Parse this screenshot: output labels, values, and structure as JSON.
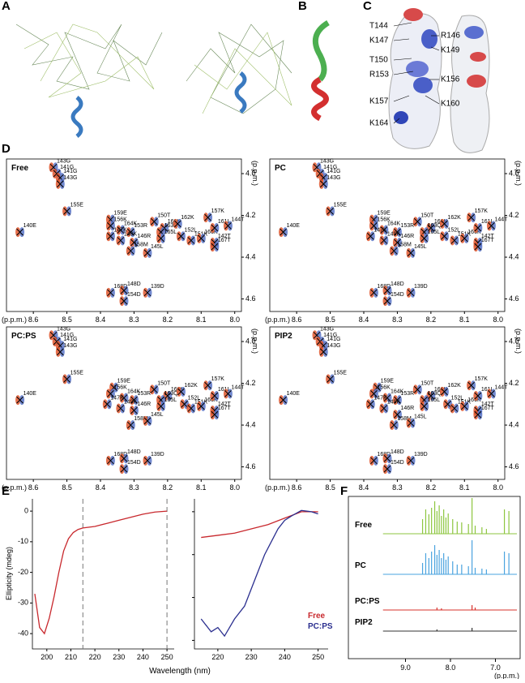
{
  "panel_labels": [
    "A",
    "B",
    "C",
    "D",
    "E",
    "F"
  ],
  "panel_c": {
    "labels": [
      "T144",
      "K147",
      "T150",
      "R153",
      "K157",
      "K164",
      "R146",
      "K149",
      "K156",
      "K160"
    ]
  },
  "panel_d": {
    "xlim": [
      8.68,
      7.98
    ],
    "ylim": [
      3.93,
      4.66
    ],
    "xticks": [
      8.6,
      8.5,
      8.4,
      8.3,
      8.2,
      8.1,
      {
        "value": 8.0,
        "label": "8.0"
      }
    ],
    "yticks": [
      {
        "value": 4.0,
        "label": "4.0"
      },
      4.2,
      4.4,
      4.6
    ],
    "xlabel": "(p.p.m.)",
    "ylabel": "(p.p.m.)",
    "panels": [
      {
        "title": "Free",
        "labels": [
          "143G",
          "141G",
          "141G",
          "143G",
          "155E",
          "140E",
          "159E",
          "156K",
          "164K",
          "153R",
          "147K",
          "149K",
          "146R",
          "158M",
          "145L",
          "150T",
          "160K",
          "163Q",
          "162K",
          "165L",
          "152L",
          "151K",
          "166K",
          "157K",
          "161L",
          "144T",
          "142T",
          "167T",
          "168D",
          "148D",
          "154D",
          "139D"
        ],
        "x": [
          8.54,
          8.53,
          8.52,
          8.52,
          8.5,
          8.64,
          8.37,
          8.37,
          8.34,
          8.31,
          8.37,
          8.34,
          8.3,
          8.31,
          8.26,
          8.24,
          8.21,
          8.22,
          8.17,
          8.22,
          8.16,
          8.13,
          8.1,
          8.08,
          8.06,
          8.02,
          8.06,
          8.06,
          8.37,
          8.33,
          8.33,
          8.26
        ],
        "y": [
          3.97,
          4.0,
          4.02,
          4.05,
          4.18,
          4.28,
          4.22,
          4.25,
          4.27,
          4.28,
          4.3,
          4.32,
          4.33,
          4.37,
          4.38,
          4.23,
          4.26,
          4.28,
          4.24,
          4.31,
          4.3,
          4.32,
          4.31,
          4.21,
          4.26,
          4.25,
          4.33,
          4.35,
          4.57,
          4.56,
          4.61,
          4.57
        ]
      },
      {
        "title": "PC",
        "labels": [
          "143G",
          "141G",
          "141G",
          "143G",
          "155E",
          "140E",
          "159E",
          "156K",
          "164K",
          "153R",
          "147K",
          "149K",
          "146R",
          "158M",
          "145L",
          "150T",
          "160K",
          "163Q",
          "162K",
          "165L",
          "152L",
          "151K",
          "166K",
          "157K",
          "161L",
          "144T",
          "142T",
          "167T",
          "168D",
          "148D",
          "154D",
          "139D"
        ],
        "x": [
          8.54,
          8.53,
          8.52,
          8.52,
          8.5,
          8.64,
          8.37,
          8.37,
          8.34,
          8.3,
          8.38,
          8.34,
          8.3,
          8.31,
          8.26,
          8.24,
          8.2,
          8.22,
          8.16,
          8.22,
          8.16,
          8.13,
          8.1,
          8.08,
          8.06,
          8.02,
          8.06,
          8.06,
          8.37,
          8.33,
          8.33,
          8.26
        ],
        "y": [
          3.97,
          4.0,
          4.02,
          4.05,
          4.18,
          4.28,
          4.22,
          4.25,
          4.27,
          4.28,
          4.3,
          4.32,
          4.33,
          4.37,
          4.38,
          4.23,
          4.26,
          4.28,
          4.24,
          4.31,
          4.3,
          4.32,
          4.31,
          4.21,
          4.26,
          4.25,
          4.33,
          4.35,
          4.57,
          4.56,
          4.61,
          4.57
        ]
      },
      {
        "title": "PC:PS",
        "labels": [
          "143G",
          "141G",
          "141G",
          "143G",
          "155E",
          "140E",
          "159E",
          "156K",
          "164K",
          "153R",
          "147K",
          "149K",
          "146R",
          "158M",
          "145L",
          "150T",
          "160K",
          "163Q",
          "162K",
          "165L",
          "152L",
          "151K",
          "166K",
          "157K",
          "161L",
          "144T",
          "142T",
          "167T",
          "168D",
          "148D",
          "154D",
          "139D"
        ],
        "x": [
          8.54,
          8.53,
          8.52,
          8.52,
          8.5,
          8.64,
          8.36,
          8.37,
          8.33,
          8.3,
          8.38,
          8.34,
          8.3,
          8.31,
          8.26,
          8.24,
          8.2,
          8.22,
          8.16,
          8.22,
          8.15,
          8.13,
          8.1,
          8.08,
          8.06,
          8.02,
          8.06,
          8.06,
          8.37,
          8.33,
          8.33,
          8.26
        ],
        "y": [
          3.97,
          4.0,
          4.02,
          4.05,
          4.18,
          4.28,
          4.22,
          4.25,
          4.27,
          4.28,
          4.3,
          4.32,
          4.33,
          4.4,
          4.38,
          4.23,
          4.26,
          4.28,
          4.24,
          4.31,
          4.3,
          4.32,
          4.31,
          4.21,
          4.26,
          4.25,
          4.33,
          4.35,
          4.57,
          4.56,
          4.61,
          4.57
        ]
      },
      {
        "title": "PIP2",
        "labels": [
          "143G",
          "141G",
          "141G",
          "143G",
          "155E",
          "140E",
          "159E",
          "156K",
          "164K",
          "153R",
          "147K",
          "149K",
          "146R",
          "158M",
          "145L",
          "150T",
          "160K",
          "163Q",
          "162K",
          "165L",
          "152L",
          "151K",
          "166K",
          "157K",
          "161L",
          "144T",
          "142T",
          "167T",
          "168D",
          "148D",
          "154D",
          "139D"
        ],
        "x": [
          8.54,
          8.53,
          8.52,
          8.52,
          8.5,
          8.64,
          8.36,
          8.37,
          8.33,
          8.3,
          8.38,
          8.34,
          8.3,
          8.31,
          8.26,
          8.24,
          8.2,
          8.22,
          8.16,
          8.22,
          8.15,
          8.13,
          8.1,
          8.08,
          8.06,
          8.02,
          8.06,
          8.06,
          8.37,
          8.33,
          8.33,
          8.26
        ],
        "y": [
          3.97,
          4.0,
          4.02,
          4.05,
          4.18,
          4.28,
          4.22,
          4.25,
          4.27,
          4.28,
          4.3,
          4.32,
          4.35,
          4.4,
          4.39,
          4.23,
          4.26,
          4.28,
          4.24,
          4.31,
          4.3,
          4.32,
          4.31,
          4.21,
          4.26,
          4.25,
          4.33,
          4.35,
          4.57,
          4.56,
          4.61,
          4.57
        ]
      }
    ]
  },
  "panel_e": {
    "ylabel": "Ellipticity (mdeg)",
    "xlabel": "Wavelength (nm)",
    "left": {
      "xlim": [
        194,
        253
      ],
      "ylim": [
        -45,
        4
      ],
      "xticks": [
        200,
        210,
        220,
        230,
        240,
        250
      ],
      "yticks": [
        0,
        -10,
        -20,
        -30,
        -40
      ],
      "markers": [
        215,
        250
      ],
      "series": [
        {
          "color": "#c8282d",
          "x": [
            195,
            197,
            199,
            201,
            203,
            205,
            207,
            209,
            211,
            213,
            215,
            220,
            225,
            230,
            235,
            240,
            245,
            250
          ],
          "values": [
            -27,
            -38,
            -40,
            -35,
            -28,
            -20,
            -13,
            -9,
            -7,
            -6,
            -5.5,
            -5,
            -4,
            -3,
            -2,
            -1,
            -0.3,
            0
          ]
        }
      ]
    },
    "right": {
      "xlim": [
        213,
        253
      ],
      "ylim": [
        -32,
        3
      ],
      "xticks": [
        220,
        230,
        240,
        250
      ],
      "yticks": [
        0,
        -10,
        -20,
        -30
      ],
      "series": [
        {
          "name": "Free",
          "color": "#c8282d",
          "x": [
            215,
            220,
            225,
            230,
            235,
            240,
            245,
            250
          ],
          "values": [
            -6,
            -5.5,
            -5,
            -4,
            -3,
            -1.5,
            0,
            0
          ]
        },
        {
          "name": "PC:PS",
          "color": "#2b2f8f",
          "x": [
            215,
            218,
            220,
            222,
            225,
            228,
            230,
            232,
            234,
            236,
            238,
            240,
            242,
            245,
            248,
            250
          ],
          "values": [
            -25,
            -28,
            -27,
            -29,
            -25,
            -22,
            -18,
            -14,
            -10,
            -7,
            -4,
            -2,
            -1,
            0.3,
            0,
            -0.5
          ]
        }
      ]
    }
  },
  "panel_f": {
    "xlim": [
      10.27,
      6.45
    ],
    "xticks": [
      {
        "value": 9.0,
        "label": "9.0"
      },
      {
        "value": 8.0,
        "label": "8.0"
      },
      {
        "value": 7.0,
        "label": "7.0"
      }
    ],
    "xlabel": "(p.p.m.)",
    "traces": [
      {
        "name": "Free",
        "color": "#8dc63f",
        "x": [
          8.62,
          8.55,
          8.48,
          8.42,
          8.35,
          8.3,
          8.25,
          8.2,
          8.15,
          8.1,
          8.05,
          7.95,
          7.85,
          7.75,
          7.6,
          7.52,
          7.45,
          7.3,
          7.2,
          6.8,
          6.7
        ],
        "values": [
          18,
          30,
          24,
          32,
          40,
          28,
          35,
          22,
          30,
          20,
          25,
          18,
          15,
          14,
          12,
          44,
          10,
          8,
          6,
          30,
          28
        ]
      },
      {
        "name": "PC",
        "color": "#4aa3df",
        "x": [
          8.62,
          8.55,
          8.48,
          8.42,
          8.35,
          8.3,
          8.25,
          8.2,
          8.15,
          8.1,
          8.05,
          7.95,
          7.85,
          7.75,
          7.6,
          7.52,
          7.45,
          7.3,
          7.2,
          6.8,
          6.7
        ],
        "values": [
          14,
          26,
          20,
          28,
          36,
          24,
          30,
          20,
          26,
          18,
          22,
          16,
          12,
          12,
          10,
          42,
          8,
          7,
          6,
          28,
          26
        ]
      },
      {
        "name": "PC:PS",
        "color": "#d7302b",
        "x": [
          8.3,
          8.2,
          7.52,
          7.45
        ],
        "values": [
          3,
          2,
          6,
          3
        ]
      },
      {
        "name": "PIP2",
        "color": "#333333",
        "x": [
          8.3,
          7.52
        ],
        "values": [
          2,
          4
        ]
      }
    ]
  }
}
